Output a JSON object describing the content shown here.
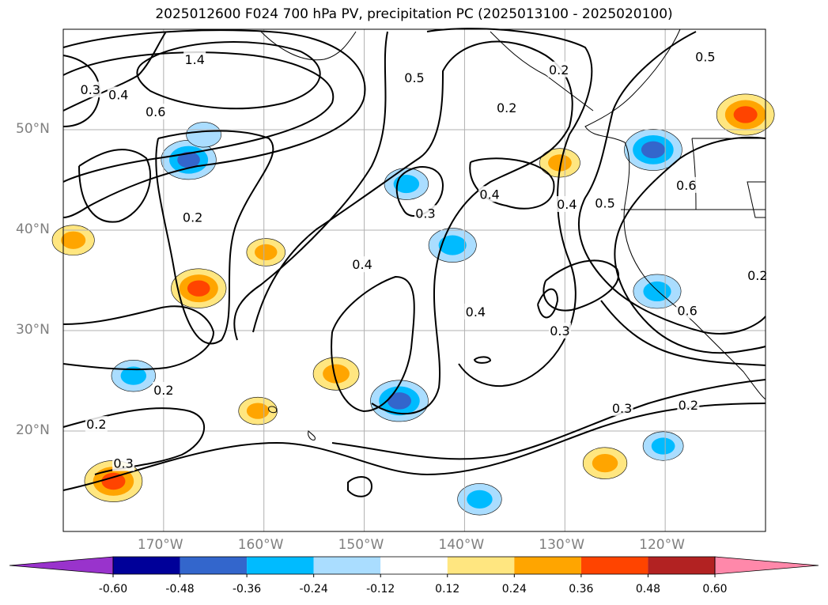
{
  "title": "2025012600 F024 700 hPa PV, precipitation PC (2025013100 - 2025020100)",
  "map": {
    "lon_range": [
      -180,
      -110
    ],
    "lat_range": [
      10,
      60
    ],
    "lat_ticks": [
      {
        "value": 50,
        "label": "50°N"
      },
      {
        "value": 40,
        "label": "40°N"
      },
      {
        "value": 30,
        "label": "30°N"
      },
      {
        "value": 20,
        "label": "20°N"
      }
    ],
    "lon_ticks": [
      {
        "value": -170,
        "label": "170°W"
      },
      {
        "value": -160,
        "label": "160°W"
      },
      {
        "value": -150,
        "label": "150°W"
      },
      {
        "value": -140,
        "label": "140°W"
      },
      {
        "value": -130,
        "label": "130°W"
      },
      {
        "value": -120,
        "label": "120°W"
      }
    ],
    "grid": true
  },
  "colorbar": {
    "levels": [
      "-0.60",
      "-0.48",
      "-0.36",
      "-0.24",
      "-0.12",
      "0.12",
      "0.24",
      "0.36",
      "0.48",
      "0.60"
    ],
    "colors": [
      "#9933cc",
      "#000099",
      "#3366cc",
      "#00bbff",
      "#aaddff",
      "#ffffff",
      "#ffe680",
      "#ffa500",
      "#ff4400",
      "#b22222",
      "#ff88aa"
    ],
    "extend": "both"
  },
  "pv_contour_labels": [
    {
      "text": "0.5",
      "lon": -145.0,
      "lat": 55.2
    },
    {
      "text": "0.4",
      "lon": -174.5,
      "lat": 53.5
    },
    {
      "text": "0.6",
      "lon": -170.8,
      "lat": 51.8
    },
    {
      "text": "0.3",
      "lon": -177.3,
      "lat": 54.0
    },
    {
      "text": "1.4",
      "lon": -166.9,
      "lat": 57.0
    },
    {
      "text": "0.2",
      "lon": -130.6,
      "lat": 56.0
    },
    {
      "text": "0.2",
      "lon": -135.8,
      "lat": 52.2
    },
    {
      "text": "0.5",
      "lon": -116.0,
      "lat": 57.3
    },
    {
      "text": "0.2",
      "lon": -167.1,
      "lat": 41.3
    },
    {
      "text": "0.3",
      "lon": -143.9,
      "lat": 41.7
    },
    {
      "text": "0.4",
      "lon": -137.5,
      "lat": 43.6
    },
    {
      "text": "0.4",
      "lon": -129.8,
      "lat": 42.6
    },
    {
      "text": "0.5",
      "lon": -126.0,
      "lat": 42.7
    },
    {
      "text": "0.6",
      "lon": -117.9,
      "lat": 44.5
    },
    {
      "text": "0.4",
      "lon": -150.2,
      "lat": 36.6
    },
    {
      "text": "0.4",
      "lon": -138.9,
      "lat": 31.9
    },
    {
      "text": "0.3",
      "lon": -130.5,
      "lat": 30.0
    },
    {
      "text": "0.6",
      "lon": -117.8,
      "lat": 32.0
    },
    {
      "text": "0.2",
      "lon": -110.8,
      "lat": 35.5
    },
    {
      "text": "0.2",
      "lon": -170.0,
      "lat": 24.1
    },
    {
      "text": "0.2",
      "lon": -176.7,
      "lat": 20.7
    },
    {
      "text": "0.3",
      "lon": -174.0,
      "lat": 16.8
    },
    {
      "text": "0.3",
      "lon": -124.3,
      "lat": 22.3
    },
    {
      "text": "0.2",
      "lon": -117.7,
      "lat": 22.6
    }
  ],
  "precip_anomalies": [
    {
      "sign": "negative",
      "lon": -167.5,
      "lat": 47.0,
      "magnitude": 0.42
    },
    {
      "sign": "negative",
      "lon": -166.0,
      "lat": 49.5,
      "magnitude": 0.2
    },
    {
      "sign": "negative",
      "lon": -173.0,
      "lat": 25.5,
      "magnitude": 0.3
    },
    {
      "sign": "negative",
      "lon": -146.5,
      "lat": 23.0,
      "magnitude": 0.45
    },
    {
      "sign": "negative",
      "lon": -145.8,
      "lat": 44.6,
      "magnitude": 0.3
    },
    {
      "sign": "negative",
      "lon": -141.2,
      "lat": 38.5,
      "magnitude": 0.34
    },
    {
      "sign": "negative",
      "lon": -120.8,
      "lat": 33.9,
      "magnitude": 0.34
    },
    {
      "sign": "negative",
      "lon": -121.2,
      "lat": 48.0,
      "magnitude": 0.45
    },
    {
      "sign": "negative",
      "lon": -138.5,
      "lat": 13.2,
      "magnitude": 0.3
    },
    {
      "sign": "negative",
      "lon": -120.2,
      "lat": 18.5,
      "magnitude": 0.26
    },
    {
      "sign": "positive",
      "lon": -166.5,
      "lat": 34.2,
      "magnitude": 0.42
    },
    {
      "sign": "positive",
      "lon": -152.8,
      "lat": 25.7,
      "magnitude": 0.32
    },
    {
      "sign": "positive",
      "lon": -175.0,
      "lat": 15.0,
      "magnitude": 0.45
    },
    {
      "sign": "positive",
      "lon": -126.0,
      "lat": 16.8,
      "magnitude": 0.3
    },
    {
      "sign": "positive",
      "lon": -112.0,
      "lat": 51.5,
      "magnitude": 0.45
    },
    {
      "sign": "positive",
      "lon": -179.0,
      "lat": 39.0,
      "magnitude": 0.28
    },
    {
      "sign": "positive",
      "lon": -159.8,
      "lat": 37.8,
      "magnitude": 0.24
    },
    {
      "sign": "positive",
      "lon": -130.5,
      "lat": 46.7,
      "magnitude": 0.26
    },
    {
      "sign": "positive",
      "lon": -160.6,
      "lat": 22.0,
      "magnitude": 0.24
    }
  ]
}
